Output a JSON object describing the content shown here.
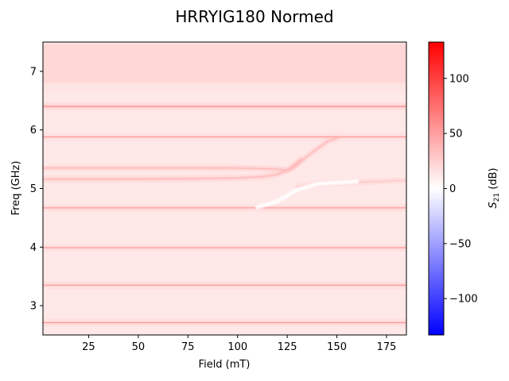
{
  "chart_data": {
    "type": "heatmap",
    "title": "HRRYIG180 Normed",
    "xlabel": "Field (mT)",
    "ylabel": "Freq (GHz)",
    "colorbar_label": {
      "prefix": "S",
      "sub": "21",
      "suffix": " (dB)"
    },
    "xlim": [
      2,
      185
    ],
    "ylim": [
      2.5,
      7.5
    ],
    "clim": [
      -133,
      133
    ],
    "colormap": [
      "#0000ff",
      "#ffffff",
      "#ff0000"
    ],
    "x_ticks": [
      25,
      50,
      75,
      100,
      125,
      150,
      175
    ],
    "y_ticks": [
      3,
      4,
      5,
      6,
      7
    ],
    "colorbar_ticks": [
      -100,
      -50,
      0,
      50,
      100
    ],
    "background_level": 12,
    "broad_bands": [
      {
        "center": 7.05,
        "halfwidth": 0.42,
        "level": 24
      },
      {
        "center": 6.62,
        "halfwidth": 0.18,
        "level": 12
      }
    ],
    "horizontal_modes": [
      {
        "freq": 6.4,
        "level": 38
      },
      {
        "freq": 5.88,
        "level": 30
      },
      {
        "freq": 4.67,
        "level": 30
      },
      {
        "freq": 3.99,
        "level": 30
      },
      {
        "freq": 3.35,
        "level": 30
      },
      {
        "freq": 2.71,
        "level": 30
      }
    ],
    "anticrossing": {
      "upper_branch": {
        "field": [
          2,
          60,
          100,
          112,
          120,
          125,
          128,
          135,
          145,
          150
        ],
        "freq": [
          5.35,
          5.35,
          5.35,
          5.34,
          5.33,
          5.31,
          5.35,
          5.55,
          5.8,
          5.86
        ],
        "level": 38
      },
      "lower_branch": {
        "field": [
          2,
          40,
          80,
          100,
          112,
          120,
          126,
          132
        ],
        "freq": [
          5.16,
          5.16,
          5.17,
          5.18,
          5.2,
          5.24,
          5.33,
          5.5
        ],
        "level": 36
      },
      "transmission_dip": {
        "field": [
          110,
          120,
          130,
          140,
          150,
          160
        ],
        "freq": [
          4.68,
          4.78,
          4.98,
          5.08,
          5.1,
          5.12
        ],
        "level": 0
      },
      "right_branch": {
        "field": [
          130,
          140,
          155,
          170,
          185
        ],
        "freq": [
          5.03,
          5.08,
          5.1,
          5.12,
          5.14
        ],
        "level": 30
      }
    }
  }
}
